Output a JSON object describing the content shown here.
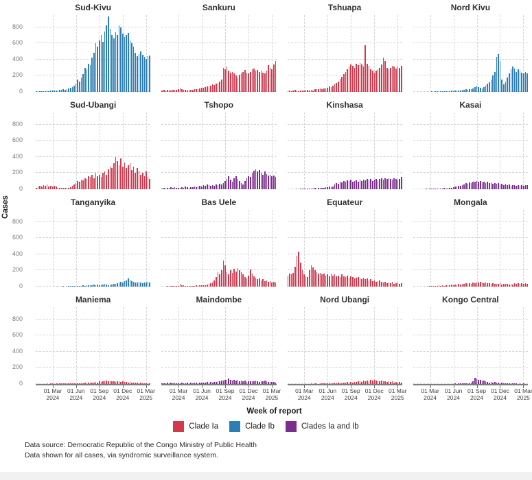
{
  "chart_data": {
    "type": "bar",
    "title": "",
    "xlabel": "Week of report",
    "ylabel": "Cases",
    "ylim": [
      0,
      950
    ],
    "yticks": [
      0,
      200,
      400,
      600,
      800
    ],
    "grid": "dashed",
    "legend_position": "bottom",
    "weeks_per_facet": 64,
    "x_tick_week_indices": [
      9,
      22,
      35,
      48,
      61
    ],
    "x_tick_labels": [
      [
        "01 Mar",
        "2024"
      ],
      [
        "01 Jun",
        "2024"
      ],
      [
        "01 Sep",
        "2024"
      ],
      [
        "01 Dec",
        "2024"
      ],
      [
        "01 Mar",
        "2025"
      ]
    ],
    "legend": [
      {
        "label": "Clade Ia",
        "color": "#cf3a4e"
      },
      {
        "label": "Clade Ib",
        "color": "#2e7eb3"
      },
      {
        "label": "Clades Ia and Ib",
        "color": "#7b2d8e"
      }
    ],
    "facets": [
      {
        "name": "Sud-Kivu",
        "clade": "Clade Ib",
        "values": [
          8,
          10,
          8,
          12,
          10,
          12,
          15,
          12,
          15,
          18,
          15,
          20,
          18,
          22,
          25,
          30,
          28,
          35,
          40,
          50,
          60,
          80,
          100,
          150,
          130,
          180,
          220,
          300,
          280,
          350,
          330,
          420,
          480,
          600,
          560,
          640,
          700,
          620,
          750,
          820,
          930,
          780,
          700,
          660,
          740,
          700,
          820,
          800,
          720,
          680,
          700,
          730,
          640,
          600,
          560,
          480,
          440,
          470,
          500,
          460,
          430,
          410,
          440,
          450
        ]
      },
      {
        "name": "Sankuru",
        "clade": "Clade Ia",
        "values": [
          18,
          22,
          20,
          25,
          22,
          20,
          25,
          28,
          24,
          30,
          45,
          35,
          22,
          25,
          20,
          24,
          28,
          25,
          30,
          38,
          35,
          45,
          50,
          55,
          60,
          70,
          65,
          80,
          90,
          85,
          100,
          110,
          130,
          150,
          300,
          280,
          310,
          260,
          240,
          250,
          230,
          200,
          180,
          210,
          230,
          250,
          270,
          240,
          230,
          250,
          280,
          290,
          260,
          270,
          250,
          260,
          240,
          230,
          260,
          330,
          300,
          280,
          340,
          380
        ]
      },
      {
        "name": "Tshuapa",
        "clade": "Clade Ia",
        "values": [
          10,
          15,
          12,
          20,
          25,
          15,
          12,
          18,
          15,
          20,
          28,
          22,
          18,
          25,
          20,
          30,
          35,
          30,
          40,
          35,
          40,
          45,
          55,
          65,
          60,
          75,
          90,
          110,
          130,
          160,
          190,
          220,
          250,
          280,
          310,
          340,
          320,
          300,
          350,
          330,
          360,
          340,
          310,
          580,
          350,
          320,
          280,
          260,
          240,
          260,
          280,
          300,
          340,
          420,
          380,
          300,
          280,
          300,
          320,
          310,
          290,
          310,
          300,
          320
        ]
      },
      {
        "name": "Nord Kivu",
        "clade": "Clade Ib",
        "values": [
          0,
          2,
          0,
          3,
          2,
          0,
          3,
          2,
          4,
          3,
          5,
          4,
          6,
          5,
          8,
          6,
          10,
          8,
          12,
          10,
          12,
          15,
          12,
          18,
          15,
          20,
          18,
          25,
          22,
          30,
          25,
          35,
          30,
          40,
          60,
          80,
          60,
          50,
          40,
          60,
          80,
          100,
          120,
          150,
          200,
          250,
          430,
          470,
          380,
          150,
          90,
          120,
          180,
          230,
          280,
          310,
          290,
          250,
          280,
          260,
          240,
          230,
          250,
          230
        ]
      },
      {
        "name": "Sud-Ubangi",
        "clade": "Clade Ia",
        "values": [
          20,
          35,
          45,
          30,
          50,
          40,
          60,
          35,
          45,
          30,
          40,
          30,
          20,
          15,
          20,
          18,
          15,
          20,
          18,
          25,
          40,
          60,
          80,
          100,
          90,
          120,
          110,
          140,
          130,
          160,
          150,
          180,
          140,
          200,
          160,
          180,
          150,
          200,
          220,
          180,
          250,
          280,
          260,
          320,
          400,
          350,
          300,
          380,
          280,
          330,
          260,
          300,
          320,
          240,
          280,
          200,
          260,
          230,
          180,
          200,
          160,
          220,
          150,
          130
        ]
      },
      {
        "name": "Tshopo",
        "clade": "Clades Ia and Ib",
        "values": [
          10,
          15,
          12,
          20,
          15,
          25,
          18,
          22,
          15,
          20,
          18,
          25,
          20,
          30,
          25,
          20,
          28,
          22,
          30,
          25,
          30,
          40,
          35,
          50,
          45,
          60,
          50,
          40,
          55,
          45,
          60,
          50,
          70,
          60,
          80,
          100,
          130,
          160,
          120,
          90,
          140,
          160,
          130,
          100,
          80,
          60,
          100,
          140,
          160,
          150,
          200,
          230,
          250,
          220,
          240,
          200,
          180,
          220,
          190,
          170,
          180,
          160,
          170,
          150
        ]
      },
      {
        "name": "Kinshasa",
        "clade": "Clades Ia and Ib",
        "values": [
          2,
          3,
          2,
          4,
          3,
          5,
          4,
          6,
          5,
          8,
          6,
          10,
          8,
          12,
          10,
          15,
          12,
          18,
          15,
          20,
          18,
          25,
          22,
          30,
          28,
          35,
          60,
          80,
          70,
          90,
          85,
          100,
          90,
          110,
          100,
          120,
          95,
          105,
          110,
          95,
          115,
          100,
          120,
          110,
          130,
          115,
          125,
          105,
          120,
          130,
          110,
          125,
          140,
          120,
          135,
          125,
          140,
          130,
          120,
          135,
          125,
          115,
          130,
          155
        ]
      },
      {
        "name": "Kasai",
        "clade": "Clades Ia and Ib",
        "values": [
          0,
          2,
          0,
          3,
          2,
          4,
          3,
          5,
          4,
          6,
          5,
          8,
          6,
          10,
          8,
          12,
          10,
          15,
          12,
          18,
          15,
          20,
          25,
          30,
          35,
          45,
          40,
          55,
          60,
          75,
          70,
          85,
          80,
          95,
          90,
          105,
          95,
          100,
          85,
          90,
          80,
          90,
          75,
          85,
          70,
          80,
          65,
          75,
          60,
          70,
          55,
          65,
          50,
          60,
          45,
          55,
          50,
          45,
          55,
          40,
          50,
          45,
          55,
          50
        ]
      },
      {
        "name": "Tanganyika",
        "clade": "Clade Ib",
        "values": [
          0,
          0,
          0,
          2,
          0,
          3,
          2,
          0,
          3,
          2,
          4,
          3,
          5,
          4,
          3,
          5,
          4,
          6,
          5,
          8,
          6,
          8,
          10,
          8,
          12,
          10,
          15,
          12,
          18,
          15,
          20,
          15,
          22,
          18,
          25,
          20,
          28,
          22,
          30,
          25,
          20,
          25,
          22,
          30,
          35,
          45,
          55,
          60,
          50,
          65,
          75,
          105,
          85,
          70,
          60,
          55,
          50,
          60,
          55,
          45,
          55,
          50,
          60,
          55
        ]
      },
      {
        "name": "Bas Uele",
        "clade": "Clade Ia",
        "values": [
          2,
          3,
          2,
          5,
          3,
          8,
          5,
          10,
          8,
          12,
          30,
          20,
          15,
          10,
          12,
          8,
          10,
          12,
          10,
          15,
          12,
          18,
          15,
          20,
          18,
          25,
          30,
          40,
          50,
          80,
          120,
          180,
          150,
          200,
          320,
          260,
          180,
          150,
          200,
          170,
          220,
          190,
          230,
          200,
          180,
          150,
          120,
          100,
          140,
          210,
          160,
          130,
          110,
          90,
          100,
          80,
          90,
          70,
          80,
          60,
          70,
          55,
          60,
          50
        ]
      },
      {
        "name": "Equateur",
        "clade": "Clade Ia",
        "values": [
          140,
          160,
          150,
          170,
          250,
          380,
          430,
          300,
          200,
          150,
          130,
          120,
          200,
          260,
          240,
          200,
          180,
          160,
          170,
          150,
          160,
          140,
          150,
          130,
          160,
          140,
          150,
          130,
          140,
          120,
          150,
          130,
          120,
          140,
          110,
          130,
          120,
          100,
          110,
          120,
          100,
          90,
          110,
          90,
          100,
          80,
          90,
          70,
          80,
          60,
          70,
          80,
          60,
          50,
          60,
          40,
          50,
          40,
          60,
          30,
          40,
          50,
          35,
          45
        ]
      },
      {
        "name": "Mongala",
        "clade": "Clade Ia",
        "values": [
          0,
          0,
          2,
          0,
          3,
          2,
          4,
          3,
          5,
          8,
          6,
          10,
          8,
          12,
          15,
          10,
          18,
          12,
          20,
          15,
          18,
          22,
          16,
          25,
          20,
          30,
          25,
          35,
          30,
          40,
          35,
          45,
          38,
          50,
          42,
          55,
          48,
          60,
          52,
          45,
          50,
          40,
          45,
          35,
          42,
          30,
          38,
          32,
          40,
          28,
          35,
          30,
          38,
          25,
          35,
          28,
          40,
          32,
          45,
          35,
          40,
          35,
          45,
          38
        ]
      },
      {
        "name": "Maniema",
        "clade": "Clade Ia",
        "values": [
          2,
          0,
          3,
          2,
          4,
          3,
          5,
          4,
          6,
          5,
          4,
          6,
          5,
          8,
          6,
          10,
          8,
          6,
          10,
          8,
          10,
          8,
          12,
          10,
          8,
          12,
          10,
          15,
          12,
          18,
          15,
          20,
          18,
          25,
          20,
          30,
          25,
          35,
          30,
          40,
          35,
          30,
          38,
          32,
          28,
          35,
          30,
          25,
          30,
          22,
          25,
          20,
          22,
          18,
          20,
          15,
          18,
          12,
          15,
          10,
          12,
          10,
          8,
          10
        ]
      },
      {
        "name": "Maindombe",
        "clade": "Clades Ia and Ib",
        "values": [
          8,
          12,
          10,
          15,
          12,
          18,
          10,
          14,
          8,
          12,
          10,
          15,
          12,
          10,
          14,
          10,
          16,
          12,
          18,
          14,
          12,
          16,
          14,
          20,
          16,
          22,
          18,
          25,
          20,
          28,
          25,
          35,
          30,
          45,
          40,
          55,
          50,
          65,
          55,
          45,
          50,
          42,
          48,
          38,
          44,
          32,
          40,
          28,
          35,
          30,
          38,
          30,
          42,
          34,
          28,
          36,
          30,
          40,
          32,
          25,
          28,
          22,
          25,
          20
        ]
      },
      {
        "name": "Nord Ubangi",
        "clade": "Clade Ia",
        "values": [
          0,
          2,
          0,
          3,
          2,
          0,
          3,
          2,
          4,
          3,
          2,
          4,
          3,
          5,
          4,
          6,
          5,
          4,
          6,
          5,
          8,
          6,
          10,
          8,
          12,
          10,
          15,
          12,
          18,
          15,
          12,
          18,
          15,
          22,
          18,
          25,
          20,
          28,
          22,
          30,
          35,
          28,
          40,
          32,
          45,
          38,
          50,
          42,
          48,
          40,
          45,
          35,
          42,
          30,
          38,
          28,
          35,
          25,
          30,
          20,
          25,
          18,
          22,
          15
        ]
      },
      {
        "name": "Kongo Central",
        "clade": "Clades Ia and Ib",
        "values": [
          0,
          0,
          2,
          0,
          0,
          3,
          0,
          2,
          0,
          3,
          2,
          0,
          3,
          2,
          4,
          2,
          3,
          2,
          4,
          3,
          2,
          4,
          3,
          5,
          4,
          6,
          5,
          8,
          6,
          10,
          8,
          12,
          15,
          30,
          75,
          65,
          55,
          50,
          45,
          40,
          30,
          25,
          20,
          25,
          18,
          22,
          15,
          18,
          12,
          15,
          10,
          12,
          8,
          10,
          6,
          8,
          5,
          6,
          4,
          5,
          4,
          5,
          3,
          4
        ]
      }
    ]
  },
  "footer": {
    "line1": "Data source: Democratic Republic of the Congo Ministry of Public Health",
    "line2": "Data shown for all cases, via syndromic surveillance system."
  }
}
